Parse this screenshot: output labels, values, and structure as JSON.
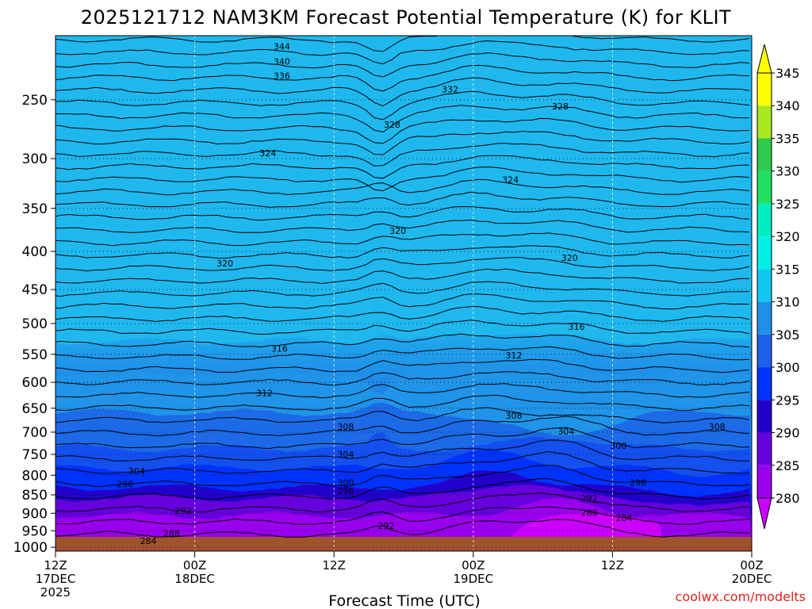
{
  "chart_data": {
    "type": "heatmap",
    "title": "2025121712 NAM3KM Forecast Potential Temperature (K) for KLIT",
    "xlabel": "Forecast Time (UTC)",
    "ylabel": "",
    "credit": "coolwx.com/modelts",
    "x_hours": [
      0,
      12,
      24,
      36,
      48,
      60
    ],
    "x_ticks": [
      {
        "hour": 0,
        "lines": [
          "12Z",
          "17DEC",
          "2025"
        ]
      },
      {
        "hour": 12,
        "lines": [
          "00Z",
          "18DEC"
        ]
      },
      {
        "hour": 24,
        "lines": [
          "12Z"
        ]
      },
      {
        "hour": 36,
        "lines": [
          "00Z",
          "19DEC"
        ]
      },
      {
        "hour": 48,
        "lines": [
          "12Z"
        ]
      },
      {
        "hour": 60,
        "lines": [
          "00Z",
          "20DEC"
        ]
      }
    ],
    "y_scale": "log",
    "ylim": [
      1012,
      205
    ],
    "y_ticks": [
      250,
      300,
      350,
      400,
      450,
      500,
      550,
      600,
      650,
      700,
      750,
      800,
      850,
      900,
      950,
      1000
    ],
    "grid": true,
    "colorbar": {
      "levels": [
        280,
        285,
        290,
        295,
        300,
        305,
        310,
        315,
        320,
        325,
        330,
        335,
        340,
        345
      ],
      "colors": [
        "#cc00ff",
        "#9900ee",
        "#6600dd",
        "#2200cc",
        "#0033ff",
        "#1c62e8",
        "#1f8fe8",
        "#10c8f0",
        "#00f0e8",
        "#00eec0",
        "#20e060",
        "#30cc50",
        "#a8e820",
        "#ffff00"
      ]
    },
    "contour_labels": [
      {
        "value": "344",
        "hour": 19.5,
        "p": 212
      },
      {
        "value": "340",
        "hour": 19.5,
        "p": 222
      },
      {
        "value": "336",
        "hour": 19.5,
        "p": 232
      },
      {
        "value": "332",
        "hour": 34.0,
        "p": 242
      },
      {
        "value": "328",
        "hour": 29.0,
        "p": 270
      },
      {
        "value": "328",
        "hour": 43.5,
        "p": 255
      },
      {
        "value": "324",
        "hour": 18.3,
        "p": 295
      },
      {
        "value": "324",
        "hour": 39.2,
        "p": 320
      },
      {
        "value": "320",
        "hour": 14.6,
        "p": 415
      },
      {
        "value": "320",
        "hour": 29.5,
        "p": 375
      },
      {
        "value": "320",
        "hour": 44.3,
        "p": 408
      },
      {
        "value": "316",
        "hour": 19.3,
        "p": 540
      },
      {
        "value": "316",
        "hour": 44.9,
        "p": 505
      },
      {
        "value": "312",
        "hour": 18.0,
        "p": 620
      },
      {
        "value": "312",
        "hour": 39.5,
        "p": 552
      },
      {
        "value": "308",
        "hour": 25.0,
        "p": 688
      },
      {
        "value": "308",
        "hour": 39.5,
        "p": 665
      },
      {
        "value": "308",
        "hour": 57.0,
        "p": 688
      },
      {
        "value": "304",
        "hour": 44.0,
        "p": 698
      },
      {
        "value": "304",
        "hour": 25.0,
        "p": 750
      },
      {
        "value": "304",
        "hour": 7.0,
        "p": 790
      },
      {
        "value": "300",
        "hour": 48.5,
        "p": 730
      },
      {
        "value": "300",
        "hour": 25.0,
        "p": 818
      },
      {
        "value": "296",
        "hour": 6.0,
        "p": 822
      },
      {
        "value": "296",
        "hour": 25.0,
        "p": 840
      },
      {
        "value": "296",
        "hour": 50.2,
        "p": 818
      },
      {
        "value": "292",
        "hour": 11.0,
        "p": 893
      },
      {
        "value": "292",
        "hour": 46.0,
        "p": 860
      },
      {
        "value": "292",
        "hour": 28.5,
        "p": 935
      },
      {
        "value": "288",
        "hour": 46.0,
        "p": 898
      },
      {
        "value": "288",
        "hour": 10.0,
        "p": 958
      },
      {
        "value": "284",
        "hour": 49.0,
        "p": 913
      },
      {
        "value": "284",
        "hour": 8.0,
        "p": 980
      }
    ]
  }
}
